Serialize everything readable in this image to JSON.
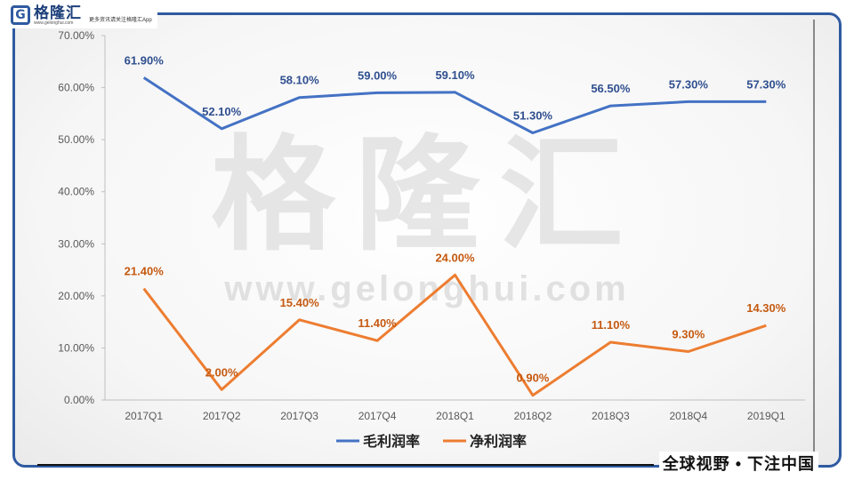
{
  "header": {
    "logo_mark": "G",
    "logo_name": "格隆汇",
    "logo_url": "www.gelonghui.com",
    "slogan": "更多资讯请关注格隆汇App"
  },
  "footer": {
    "slogan": "全球视野 • 下注中国"
  },
  "watermark": {
    "name": "格隆汇",
    "url": "www.gelonghui.com"
  },
  "colors": {
    "series1": "#4472c4",
    "series2": "#ed7d31",
    "frame": "#2f5aa0"
  },
  "chart_data": {
    "type": "line",
    "categories": [
      "2017Q1",
      "2017Q2",
      "2017Q3",
      "2017Q4",
      "2018Q1",
      "2018Q2",
      "2018Q3",
      "2018Q4",
      "2019Q1"
    ],
    "series": [
      {
        "name": "毛利润率",
        "values": [
          61.9,
          52.1,
          58.1,
          59.0,
          59.1,
          51.3,
          56.5,
          57.3,
          57.3
        ],
        "labels": [
          "61.90%",
          "52.10%",
          "58.10%",
          "59.00%",
          "59.10%",
          "51.30%",
          "56.50%",
          "57.30%",
          "57.30%"
        ]
      },
      {
        "name": "净利润率",
        "values": [
          21.4,
          2.0,
          15.4,
          11.4,
          24.0,
          0.9,
          11.1,
          9.3,
          14.3
        ],
        "labels": [
          "21.40%",
          "2.00%",
          "15.40%",
          "11.40%",
          "24.00%",
          "0.90%",
          "11.10%",
          "9.30%",
          "14.30%"
        ]
      }
    ],
    "ylim": [
      0,
      70
    ],
    "yticks": [
      "0.00%",
      "10.00%",
      "20.00%",
      "30.00%",
      "40.00%",
      "50.00%",
      "60.00%",
      "70.00%"
    ],
    "legend": "bottom",
    "grid": false
  }
}
